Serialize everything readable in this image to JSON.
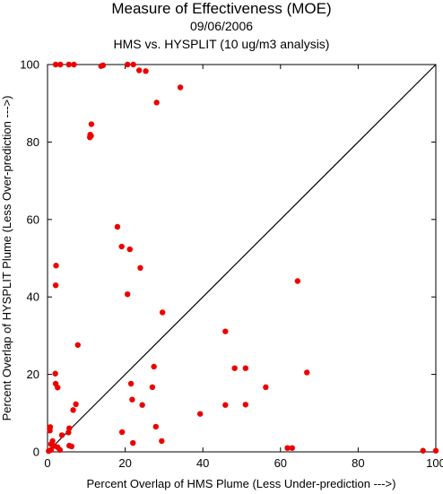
{
  "chart_data": {
    "type": "scatter",
    "title": "Measure of Effectiveness (MOE)",
    "subtitle_date": "09/06/2006",
    "subtitle_analysis": "HMS vs. HYSPLIT  (10 ug/m3 analysis)",
    "xlabel": "Percent Overlap of HMS Plume (Less Under-prediction --->)",
    "ylabel": "Percent Overlap of HYSPLIT Plume (Less Over-prediction --->)",
    "xlim": [
      0,
      100
    ],
    "ylim": [
      0,
      100
    ],
    "xticks": [
      0,
      20,
      40,
      60,
      80,
      100
    ],
    "yticks": [
      0,
      20,
      40,
      60,
      80,
      100
    ],
    "grid": false,
    "diagonal_line": true,
    "marker_color": "#ee0000",
    "line_color": "#000000",
    "points": [
      [
        2.1,
        100
      ],
      [
        3.3,
        100
      ],
      [
        5.5,
        100
      ],
      [
        6.8,
        100
      ],
      [
        13.8,
        99.6
      ],
      [
        14.3,
        99.8
      ],
      [
        20.6,
        100
      ],
      [
        22.1,
        100
      ],
      [
        23.6,
        98.5
      ],
      [
        25.3,
        98.3
      ],
      [
        11.3,
        84.6
      ],
      [
        11.0,
        81.9
      ],
      [
        11.2,
        81.6
      ],
      [
        10.9,
        81.2
      ],
      [
        28.1,
        90.2
      ],
      [
        34.2,
        94.1
      ],
      [
        18.0,
        58.1
      ],
      [
        19.1,
        53.0
      ],
      [
        21.2,
        52.3
      ],
      [
        23.9,
        47.5
      ],
      [
        2.2,
        48.1
      ],
      [
        2.1,
        43.0
      ],
      [
        20.6,
        40.7
      ],
      [
        29.6,
        36.0
      ],
      [
        64.4,
        44.1
      ],
      [
        45.8,
        31.1
      ],
      [
        7.8,
        27.6
      ],
      [
        27.4,
        22.0
      ],
      [
        48.2,
        21.6
      ],
      [
        51.0,
        21.6
      ],
      [
        66.8,
        20.5
      ],
      [
        2.0,
        20.2
      ],
      [
        2.1,
        17.6
      ],
      [
        2.6,
        16.6
      ],
      [
        21.5,
        17.6
      ],
      [
        27.0,
        16.7
      ],
      [
        56.2,
        16.7
      ],
      [
        21.8,
        13.5
      ],
      [
        24.4,
        12.1
      ],
      [
        45.8,
        12.1
      ],
      [
        51.0,
        12.2
      ],
      [
        7.3,
        12.3
      ],
      [
        6.6,
        10.8
      ],
      [
        39.3,
        9.8
      ],
      [
        0.7,
        6.4
      ],
      [
        0.6,
        5.5
      ],
      [
        5.6,
        6.1
      ],
      [
        5.4,
        5.0
      ],
      [
        27.9,
        6.5
      ],
      [
        19.2,
        5.1
      ],
      [
        3.7,
        4.3
      ],
      [
        1.3,
        2.8
      ],
      [
        0.9,
        2.0
      ],
      [
        1.8,
        1.5
      ],
      [
        2.6,
        1.2
      ],
      [
        5.6,
        1.6
      ],
      [
        6.2,
        1.4
      ],
      [
        22.0,
        2.3
      ],
      [
        29.4,
        2.8
      ],
      [
        61.8,
        1.0
      ],
      [
        63.0,
        1.0
      ],
      [
        96.7,
        0.3
      ],
      [
        100,
        0.3
      ],
      [
        0.9,
        0.5
      ],
      [
        3.2,
        0.5
      ],
      [
        0.3,
        0.2
      ]
    ]
  }
}
